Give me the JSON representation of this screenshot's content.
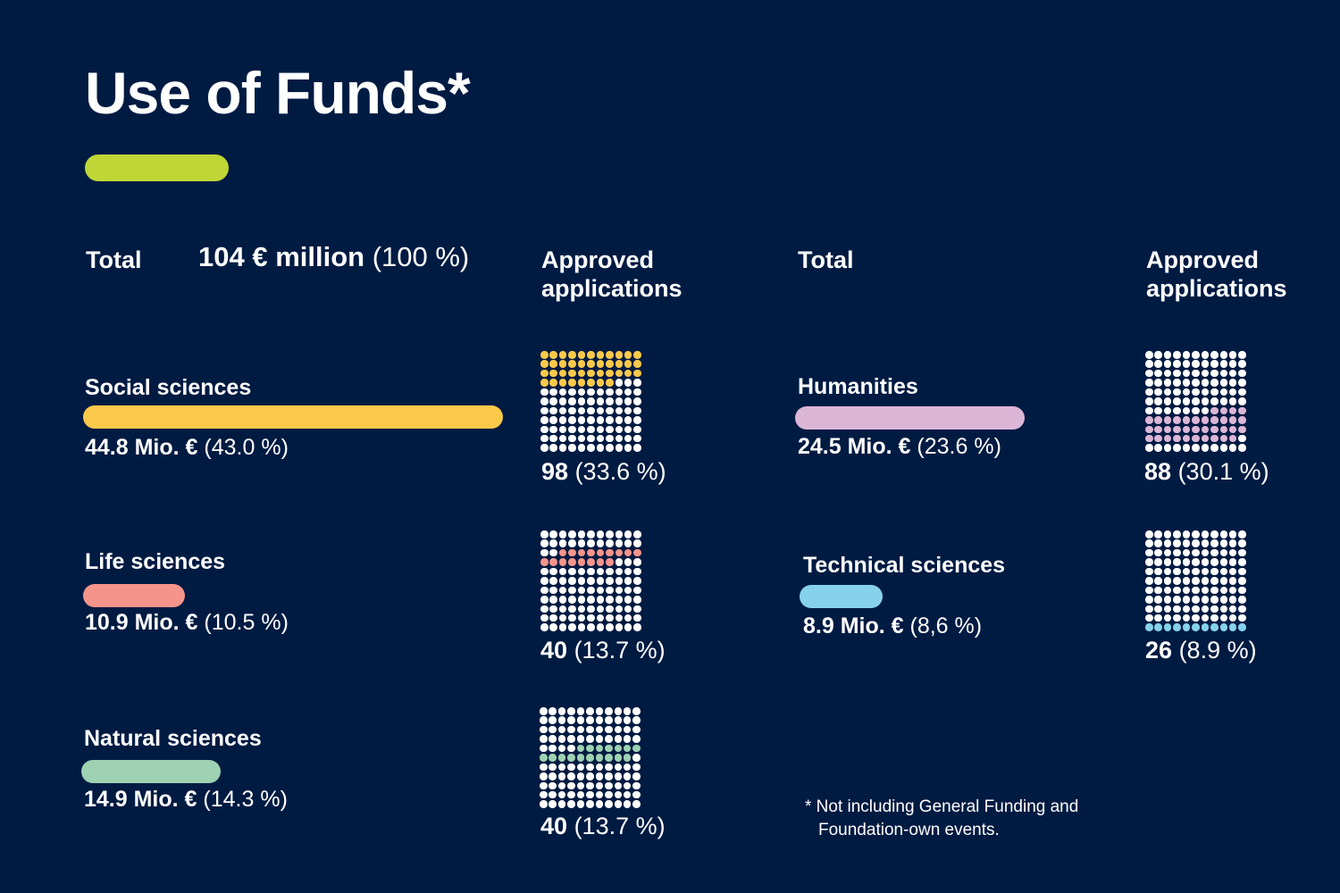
{
  "title": "Use of Funds*",
  "colors": {
    "background": "#001b42",
    "accent": "#c0d636",
    "social": "#fbc94a",
    "life": "#f5948a",
    "natural": "#9ed2b2",
    "humanities": "#dcb6d6",
    "technical": "#86d2ec",
    "dot": "#ffffff"
  },
  "headers": {
    "total_left": "Total",
    "total_value_bold": "104 € million",
    "total_value_pct": "(100 %)",
    "approved_left_line1": "Approved",
    "approved_left_line2": "applications",
    "total_right": "Total",
    "approved_right_line1": "Approved",
    "approved_right_line2": "applications"
  },
  "footnote": {
    "line1": "* Not including General Funding and",
    "line2": "Foundation-own events."
  },
  "chart_data": [
    {
      "type": "bar",
      "title": "Total",
      "unit": "Mio. €",
      "total_label": "104 € million (100 %)",
      "categories": [
        "Social sciences",
        "Life sciences",
        "Natural sciences",
        "Humanities",
        "Technical sciences"
      ],
      "values": [
        44.8,
        10.9,
        14.9,
        24.5,
        8.9
      ],
      "percent": [
        43.0,
        10.5,
        14.3,
        23.6,
        8.6
      ],
      "bar_max_value": 44.8,
      "amount_labels": [
        {
          "value": "44.8 Mio. €",
          "pct": "(43.0 %)"
        },
        {
          "value": "10.9 Mio. €",
          "pct": "(10.5 %)"
        },
        {
          "value": "14.9 Mio. €",
          "pct": "(14.3 %)"
        },
        {
          "value": "24.5 Mio. €",
          "pct": "(23.6 %)"
        },
        {
          "value": "8.9 Mio. €",
          "pct": "(8,6 %)"
        }
      ]
    },
    {
      "type": "waffle",
      "title": "Approved applications",
      "grid_cells": 121,
      "categories": [
        "Social sciences",
        "Life sciences",
        "Natural sciences",
        "Humanities",
        "Technical sciences"
      ],
      "values": [
        98,
        40,
        40,
        88,
        26
      ],
      "percent": [
        33.6,
        13.7,
        13.7,
        30.1,
        8.9
      ],
      "count_labels": [
        {
          "value": "98",
          "pct": "(33.6 %)"
        },
        {
          "value": "40",
          "pct": "(13.7 %)"
        },
        {
          "value": "40",
          "pct": "(13.7 %)"
        },
        {
          "value": "88",
          "pct": "(30.1 %)"
        },
        {
          "value": "26",
          "pct": "(8.9 %)"
        }
      ],
      "highlight_dots_start": [
        0,
        24,
        48,
        73,
        110
      ],
      "highlight_dots_count": [
        41,
        17,
        17,
        36,
        11
      ]
    }
  ]
}
